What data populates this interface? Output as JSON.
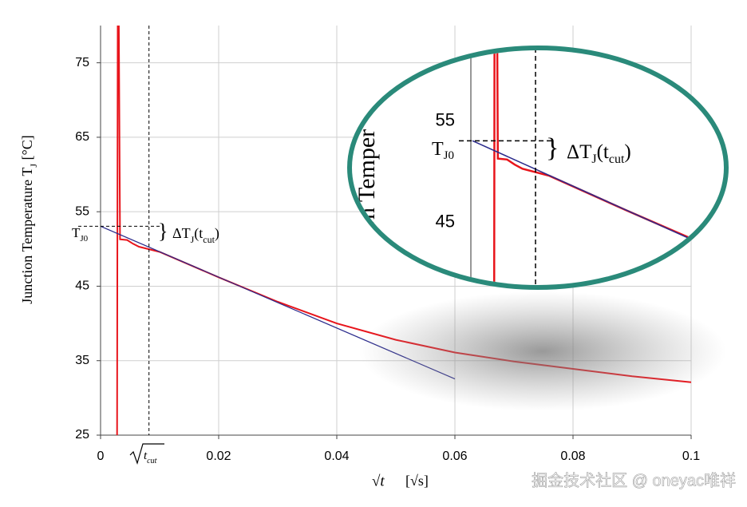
{
  "chart_data": [
    {
      "type": "line",
      "y_label": [
        "Junction Temperature T",
        "J",
        " [°C]"
      ],
      "x_label": [
        "√t",
        "[√s]"
      ],
      "xlim": [
        0,
        0.1
      ],
      "xticks": [
        0,
        0.02,
        0.04,
        0.06,
        0.08,
        0.1
      ],
      "ylim": [
        25,
        80
      ],
      "yticks": [
        25,
        35,
        45,
        55,
        65,
        75
      ],
      "grid": true,
      "series": [
        {
          "color": "#e8141b",
          "x": [
            0.0028,
            0.0029,
            0.0031,
            0.0033,
            0.0045,
            0.0055,
            0.0065,
            0.01,
            0.02,
            0.03,
            0.04,
            0.05,
            0.06,
            0.07,
            0.08,
            0.09,
            0.1
          ],
          "values": [
            25,
            80,
            80,
            51.3,
            51.2,
            50.7,
            50.3,
            49.6,
            46.2,
            42.9,
            40.0,
            37.8,
            36.1,
            34.9,
            33.9,
            32.9,
            32.1
          ]
        },
        {
          "color": "#2b2b8c",
          "x": [
            0,
            0.06
          ],
          "values": [
            53.05,
            32.55
          ]
        }
      ],
      "t_cut": 0.0082,
      "tj0": 53.05,
      "tcut_label": [
        "t",
        "cut"
      ],
      "tj0_label": [
        "T",
        "J0"
      ],
      "delta_label": [
        "ΔT",
        "J",
        "(t",
        "cut",
        ")"
      ],
      "watermark": "掘金技术社区 @ oneyac唯祥"
    },
    {
      "type": "inset",
      "xlim": [
        0,
        0.033
      ],
      "ylim": [
        38.6,
        62.2
      ],
      "yticks": [
        45,
        55
      ],
      "y_label": "on Temper",
      "tj0_label": [
        "T",
        "J0"
      ],
      "delta_label": [
        "ΔT",
        "J",
        "(t",
        "cut",
        ")"
      ]
    }
  ]
}
